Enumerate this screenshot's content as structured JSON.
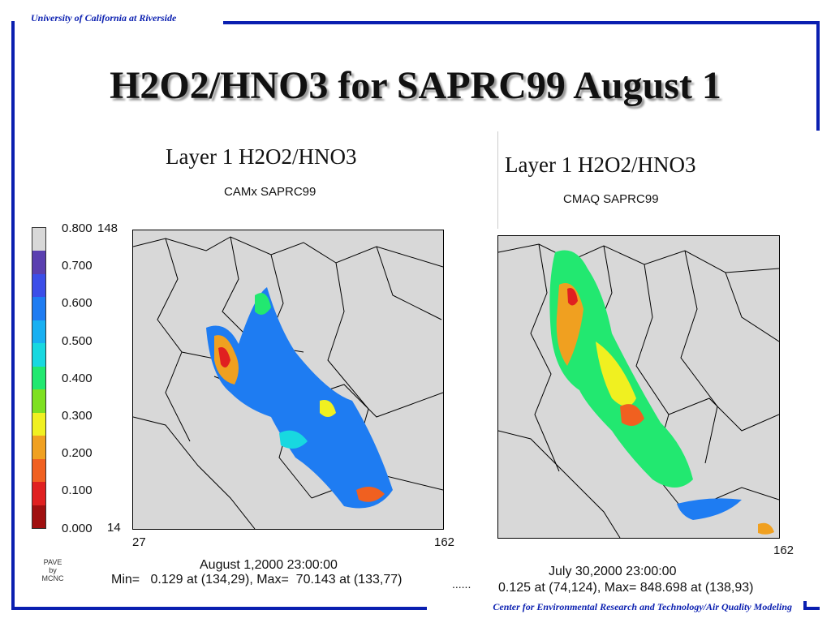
{
  "header": {
    "institution": "University of California at Riverside"
  },
  "footer": {
    "center": "Center for Environmental Research and Technology/Air Quality Modeling"
  },
  "slide": {
    "title": "H2O2/HNO3 for SAPRC99 August 1"
  },
  "left_plot": {
    "title": "Layer 1  H2O2/HNO3",
    "subtitle": "CAMx SAPRC99",
    "y_top": "148",
    "y_bottom": "14",
    "x_left": "27",
    "x_right": "162",
    "date": "August 1,2000 23:00:00",
    "minmax": "Min=   0.129 at (134,29), Max=  70.143 at (133,77)",
    "credit": [
      "PAVE",
      "by",
      "MCNC"
    ]
  },
  "right_plot": {
    "title": "Layer 1  H2O2/HNO3",
    "subtitle": "CMAQ SAPRC99",
    "x_right": "162",
    "date": "July 30,2000 23:00:00",
    "minmax": "0.125 at (74,124), Max= 848.698 at (138,93)",
    "dots": "......"
  },
  "legend": {
    "labels": [
      "0.800",
      "0.700",
      "0.600",
      "0.500",
      "0.400",
      "0.300",
      "0.200",
      "0.100",
      "0.000"
    ],
    "colors": [
      "#d8d8d8",
      "#5a3fb0",
      "#3b4ee8",
      "#1e7cf2",
      "#18b0f2",
      "#18d8e0",
      "#22e870",
      "#7ee020",
      "#f0f020",
      "#f0a020",
      "#f06020",
      "#e02020",
      "#a01010"
    ]
  },
  "colors": {
    "frame": "#0a1fb0",
    "map_bg": "#d8d8d8"
  }
}
